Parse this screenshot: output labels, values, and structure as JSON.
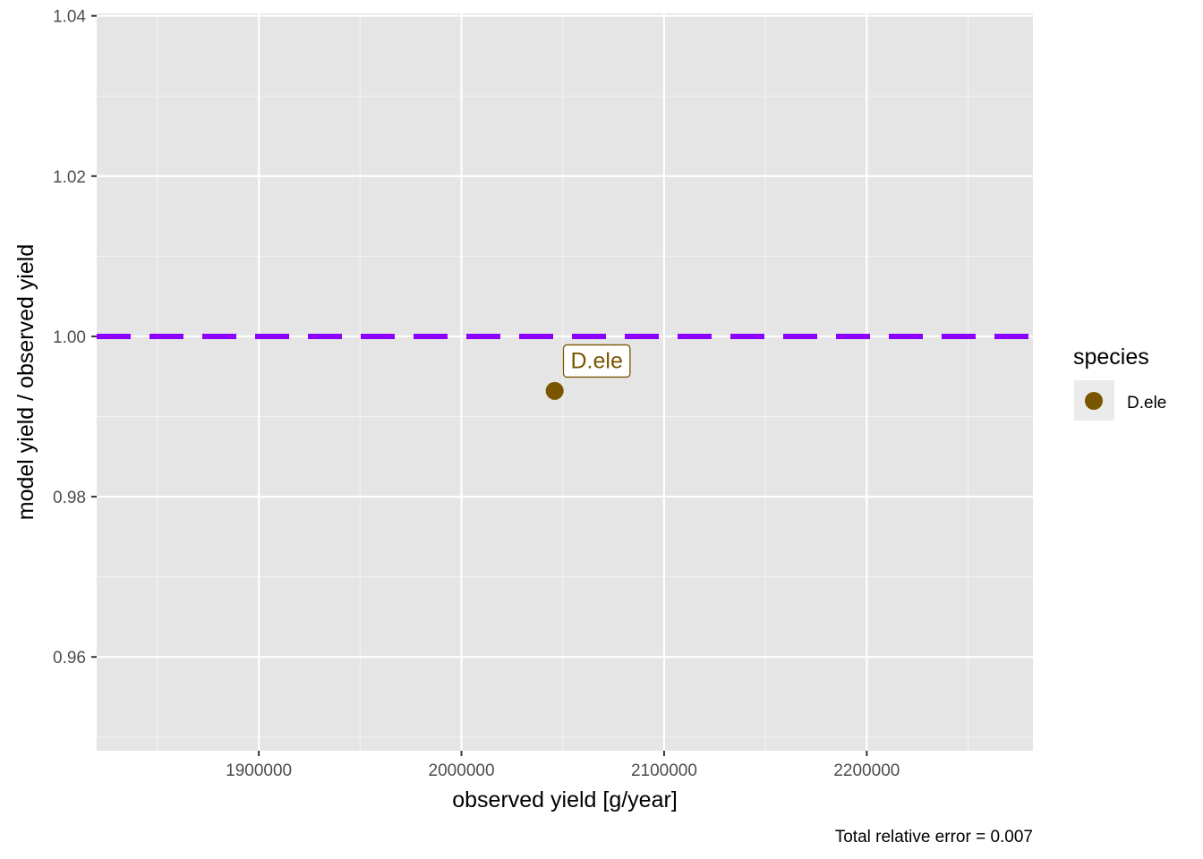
{
  "chart_data": {
    "type": "scatter",
    "xlabel": "observed yield [g/year]",
    "ylabel": "model yield / observed yield",
    "xlim": [
      1820000,
      2282000
    ],
    "ylim": [
      0.9483,
      1.0403
    ],
    "x_ticks": [
      1900000,
      2000000,
      2100000,
      2200000
    ],
    "x_tick_labels": [
      "1900000",
      "2000000",
      "2100000",
      "2200000"
    ],
    "y_ticks": [
      0.96,
      0.98,
      1.0,
      1.02,
      1.04
    ],
    "y_tick_labels": [
      "0.96",
      "0.98",
      "1.00",
      "1.02",
      "1.04"
    ],
    "grid": true,
    "background": "#e5e5e5",
    "reference_line": {
      "y": 1.0,
      "style": "dashed",
      "color": "#8b00ff"
    },
    "series": [
      {
        "name": "D.ele",
        "color": "#7a5500",
        "points": [
          {
            "x": 2046000,
            "y": 0.9932,
            "label": "D.ele"
          }
        ]
      }
    ],
    "legend": {
      "title": "species",
      "position": "right",
      "entries": [
        {
          "label": "D.ele",
          "color": "#7a5500"
        }
      ]
    },
    "caption": "Total relative error = 0.007"
  }
}
